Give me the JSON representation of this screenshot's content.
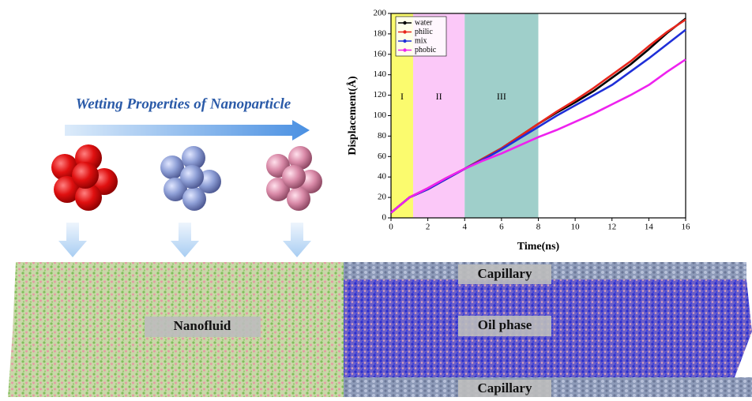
{
  "chart_data": {
    "type": "line",
    "x_label": "Time(ns)",
    "y_label": "Displacement(Å)",
    "x": [
      0,
      1,
      2,
      3,
      4,
      5,
      6,
      7,
      8,
      9,
      10,
      11,
      12,
      13,
      14,
      15,
      16
    ],
    "series": [
      {
        "name": "water",
        "color": "#000000",
        "values": [
          5,
          20,
          28,
          38,
          48,
          58,
          68,
          80,
          92,
          103,
          113,
          124,
          137,
          150,
          165,
          181,
          195
        ]
      },
      {
        "name": "philic",
        "color": "#e8261c",
        "values": [
          5,
          20,
          29,
          39,
          48,
          58,
          68,
          80,
          92,
          104,
          115,
          127,
          140,
          153,
          168,
          182,
          194
        ]
      },
      {
        "name": "mix",
        "color": "#1f2fd8",
        "values": [
          5,
          20,
          28,
          38,
          48,
          57,
          67,
          78,
          89,
          100,
          110,
          120,
          130,
          143,
          156,
          170,
          184
        ]
      },
      {
        "name": "phobic",
        "color": "#ee22ee",
        "values": [
          5,
          20,
          29,
          39,
          48,
          56,
          63,
          71,
          79,
          86,
          94,
          102,
          111,
          120,
          130,
          143,
          155
        ]
      }
    ],
    "regions": [
      {
        "label": "I",
        "start": 0,
        "end": 1.2,
        "color": "#fbfb6e"
      },
      {
        "label": "II",
        "start": 1.2,
        "end": 4,
        "color": "#fbc8f8"
      },
      {
        "label": "III",
        "start": 4,
        "end": 8,
        "color": "#9fcfca"
      }
    ],
    "xlim": [
      0,
      16
    ],
    "xticks": [
      0,
      2,
      4,
      6,
      8,
      10,
      12,
      14,
      16
    ],
    "ylim": [
      0,
      200
    ],
    "yticks": [
      0,
      20,
      40,
      60,
      80,
      100,
      120,
      140,
      160,
      180,
      200
    ],
    "legend": "upper left"
  },
  "heading": "Wetting Properties of Nanoparticle",
  "nanofluid_label": "Nanofluid",
  "capillary_top": "Capillary",
  "oil_phase": "Oil phase",
  "capillary_bottom": "Capillary"
}
